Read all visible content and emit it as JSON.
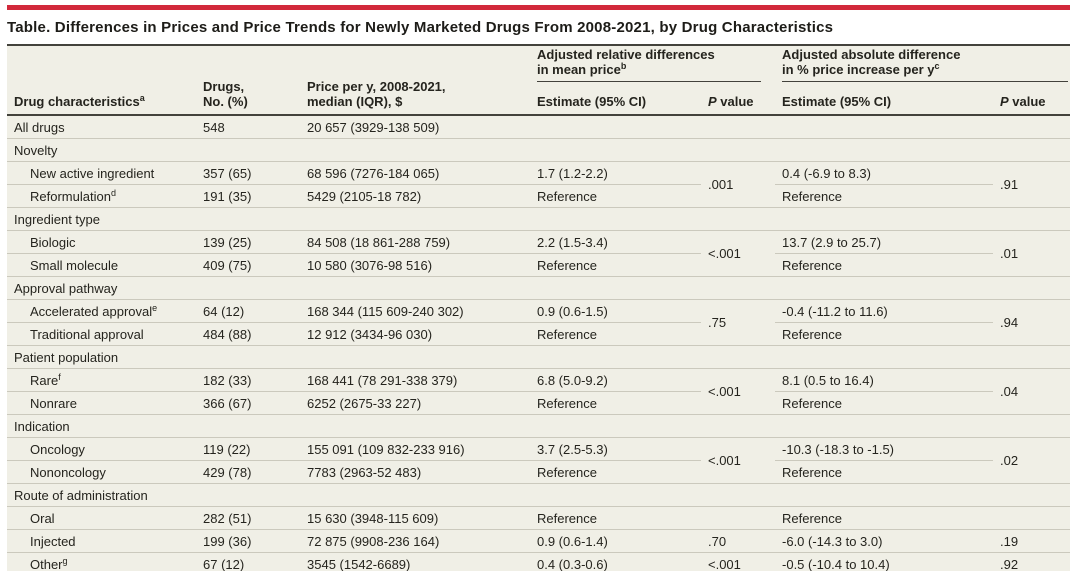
{
  "accent_color": "#d2293b",
  "title": "Table. Differences in Prices and Price Trends for Newly Marketed Drugs From 2008-2021, by Drug Characteristics",
  "header": {
    "drug_characteristics": "Drug characteristics",
    "drug_characteristics_sup": "a",
    "drugs_no_line1": "Drugs,",
    "drugs_no_line2": "No. (%)",
    "price_line1": "Price per y, 2008-2021,",
    "price_line2": "median (IQR), $",
    "group_relative_line1": "Adjusted relative differences",
    "group_relative_line2": "in mean price",
    "group_relative_sup": "b",
    "group_absolute_line1": "Adjusted absolute difference",
    "group_absolute_line2": "in % price increase per y",
    "group_absolute_sup": "c",
    "estimate": "Estimate (95% CI)",
    "p_italic": "P",
    "p_rest": " value"
  },
  "body": {
    "all_drugs": {
      "label": "All drugs",
      "no": "548",
      "price": "20 657 (3929-138 509)"
    },
    "novelty": {
      "section": "Novelty",
      "row1": {
        "label": "New active ingredient",
        "no": "357 (65)",
        "price": "68 596 (7276-184 065)",
        "est_rel": "1.7 (1.2-2.2)",
        "est_abs": "0.4 (-6.9 to 8.3)"
      },
      "row2": {
        "label": "Reformulation",
        "sup": "d",
        "no": "191 (35)",
        "price": "5429 (2105-18 782)",
        "est_rel": "Reference",
        "est_abs": "Reference"
      },
      "p_rel": ".001",
      "p_abs": ".91"
    },
    "ingredient_type": {
      "section": "Ingredient type",
      "row1": {
        "label": "Biologic",
        "no": "139 (25)",
        "price": "84 508 (18 861-288 759)",
        "est_rel": "2.2 (1.5-3.4)",
        "est_abs": "13.7 (2.9 to 25.7)"
      },
      "row2": {
        "label": "Small molecule",
        "no": "409 (75)",
        "price": "10 580 (3076-98 516)",
        "est_rel": "Reference",
        "est_abs": "Reference"
      },
      "p_rel": "<.001",
      "p_abs": ".01"
    },
    "approval_pathway": {
      "section": "Approval pathway",
      "row1": {
        "label": "Accelerated approval",
        "sup": "e",
        "no": "64 (12)",
        "price": "168 344 (115 609-240 302)",
        "est_rel": "0.9 (0.6-1.5)",
        "est_abs": "-0.4 (-11.2 to 11.6)"
      },
      "row2": {
        "label": "Traditional approval",
        "no": "484 (88)",
        "price": "12 912 (3434-96 030)",
        "est_rel": "Reference",
        "est_abs": "Reference"
      },
      "p_rel": ".75",
      "p_abs": ".94"
    },
    "patient_population": {
      "section": "Patient population",
      "row1": {
        "label": "Rare",
        "sup": "f",
        "no": "182 (33)",
        "price": "168 441 (78 291-338 379)",
        "est_rel": "6.8 (5.0-9.2)",
        "est_abs": "8.1 (0.5 to 16.4)"
      },
      "row2": {
        "label": "Nonrare",
        "no": "366 (67)",
        "price": "6252 (2675-33 227)",
        "est_rel": "Reference",
        "est_abs": "Reference"
      },
      "p_rel": "<.001",
      "p_abs": ".04"
    },
    "indication": {
      "section": "Indication",
      "row1": {
        "label": "Oncology",
        "no": "119 (22)",
        "price": "155 091 (109 832-233 916)",
        "est_rel": "3.7 (2.5-5.3)",
        "est_abs": "-10.3 (-18.3 to -1.5)"
      },
      "row2": {
        "label": "Nononcology",
        "no": "429 (78)",
        "price": "7783 (2963-52 483)",
        "est_rel": "Reference",
        "est_abs": "Reference"
      },
      "p_rel": "<.001",
      "p_abs": ".02"
    },
    "route": {
      "section": "Route of administration",
      "row1": {
        "label": "Oral",
        "no": "282 (51)",
        "price": "15 630 (3948-115 609)",
        "est_rel": "Reference",
        "p_rel": "",
        "est_abs": "Reference",
        "p_abs": ""
      },
      "row2": {
        "label": "Injected",
        "no": "199 (36)",
        "price": "72 875 (9908-236 164)",
        "est_rel": "0.9 (0.6-1.4)",
        "p_rel": ".70",
        "est_abs": "-6.0 (-14.3 to 3.0)",
        "p_abs": ".19"
      },
      "row3": {
        "label": "Other",
        "sup": "g",
        "no": "67 (12)",
        "price": "3545 (1542-6689)",
        "est_rel": "0.4 (0.3-0.6)",
        "p_rel": "<.001",
        "est_abs": "-0.5 (-10.4 to 10.4)",
        "p_abs": ".92"
      }
    }
  }
}
